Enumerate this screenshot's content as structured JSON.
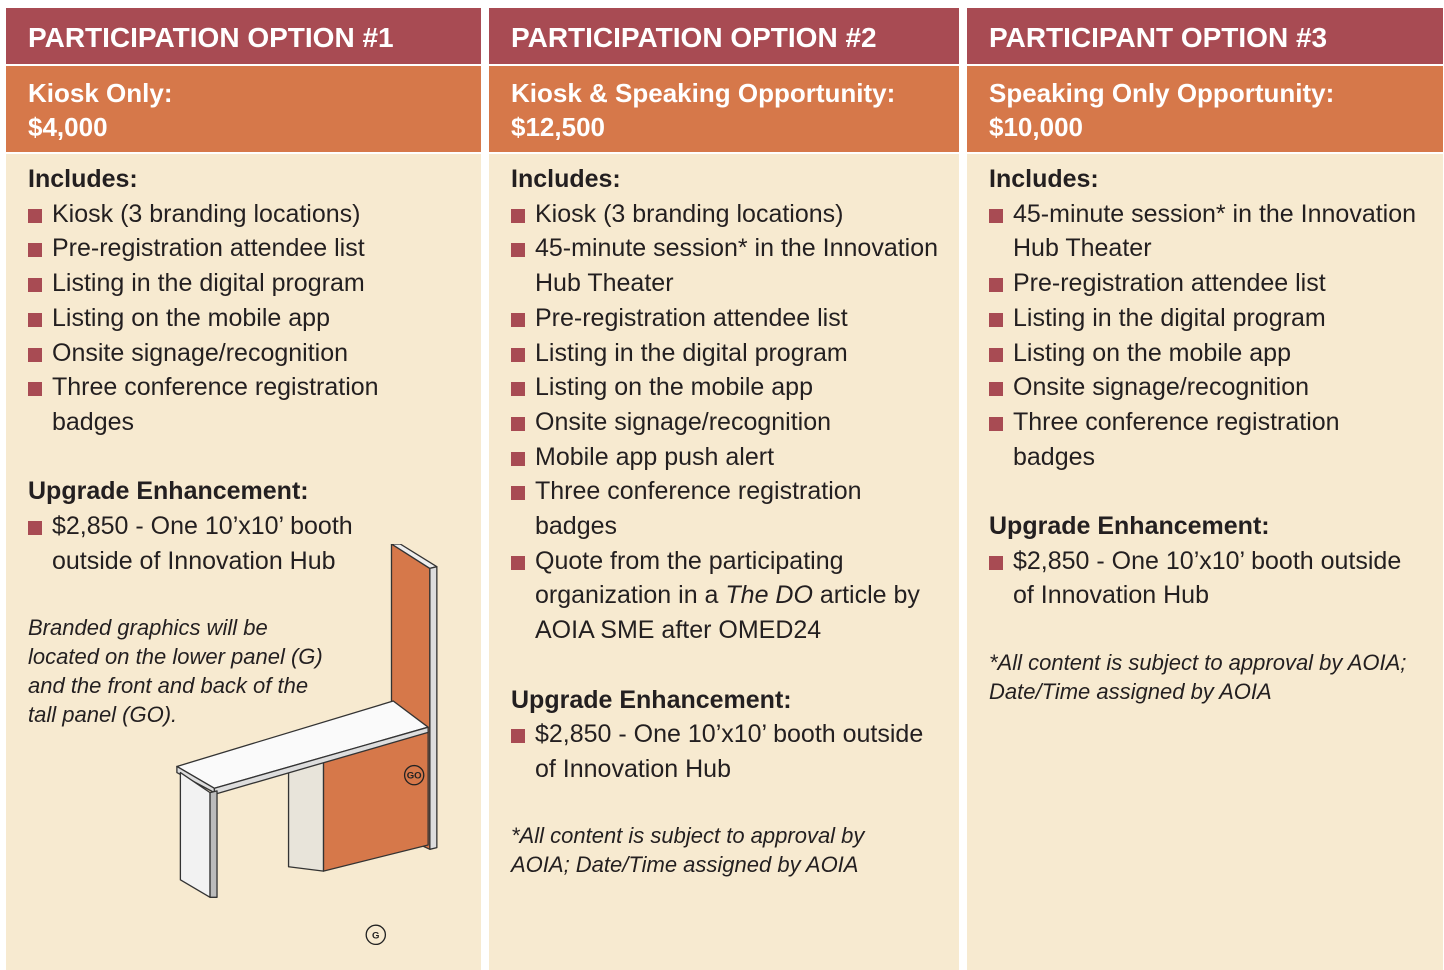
{
  "columns": [
    {
      "header": "PARTICIPATION OPTION #1",
      "title": "Kiosk Only:",
      "price": "$4,000",
      "includes_label": "Includes:",
      "items": [
        "Kiosk (3 branding locations)",
        "Pre-registration attendee list",
        "Listing in the digital program",
        "Listing on the mobile app",
        "Onsite signage/recognition",
        "Three conference registration badges"
      ],
      "upgrade_label": "Upgrade Enhancement:",
      "upgrade_items": [
        "$2,850 - One 10’x10’ booth outside of Innovation Hub"
      ],
      "note": "Branded graphics will be located on the lower panel (G) and the front and back of the tall panel (GO).",
      "illustration_labels": [
        "GO",
        "G"
      ]
    },
    {
      "header": "PARTICIPATION OPTION #2",
      "title": "Kiosk & Speaking Opportunity:",
      "price": "$12,500",
      "includes_label": "Includes:",
      "items": [
        "Kiosk (3 branding locations)",
        "45-minute session* in the Innovation Hub Theater",
        "Pre-registration attendee list",
        "Listing in the digital program",
        "Listing on the mobile app",
        "Onsite signage/recognition",
        "Mobile app push alert",
        "Three conference registration badges",
        [
          {
            "text": "Quote from the participating organization in a "
          },
          {
            "text": "The DO",
            "italic": true
          },
          {
            "text": " article by AOIA SME after OMED24"
          }
        ]
      ],
      "upgrade_label": "Upgrade Enhancement:",
      "upgrade_items": [
        "$2,850 - One 10’x10’ booth outside of Innovation Hub"
      ],
      "note": "*All content is subject to approval by AOIA; Date/Time assigned by AOIA"
    },
    {
      "header": "PARTICIPANT OPTION #3",
      "title": "Speaking Only Opportunity:",
      "price": "$10,000",
      "includes_label": "Includes:",
      "items": [
        "45-minute session* in the Innovation Hub Theater",
        "Pre-registration attendee list",
        "Listing in the digital program",
        "Listing on the mobile app",
        "Onsite signage/recognition",
        "Three conference registration badges"
      ],
      "upgrade_label": "Upgrade Enhancement:",
      "upgrade_items": [
        "$2,850 - One 10’x10’ booth outside of Innovation Hub"
      ],
      "note": "*All content is subject to approval by AOIA; Date/Time assigned by AOIA"
    }
  ]
}
